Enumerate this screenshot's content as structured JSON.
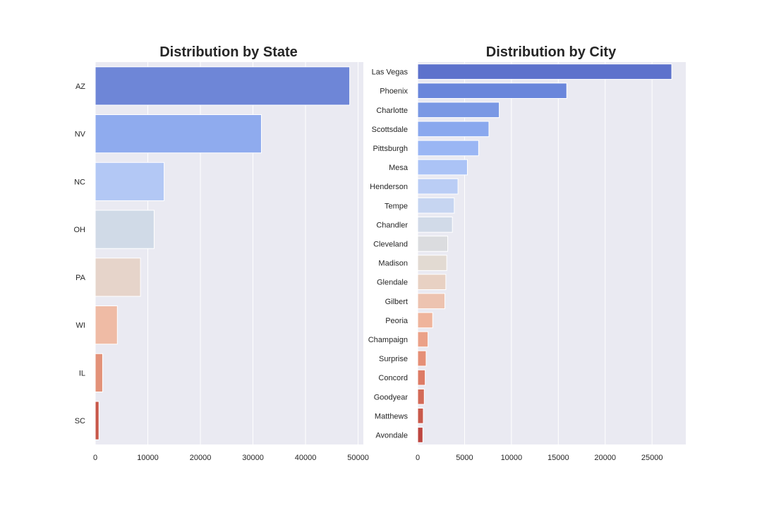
{
  "chart_data": [
    {
      "type": "bar",
      "orientation": "horizontal",
      "title": "Distribution by State",
      "xlabel": "",
      "ylabel": "",
      "xlim": [
        0,
        51000
      ],
      "xticks": [
        0,
        10000,
        20000,
        30000,
        40000,
        50000
      ],
      "grid": true,
      "categories": [
        "AZ",
        "NV",
        "NC",
        "OH",
        "PA",
        "WI",
        "IL",
        "SC"
      ],
      "values": [
        48400,
        31600,
        13100,
        11200,
        8600,
        4200,
        1400,
        700
      ],
      "colors": [
        "#6e86d7",
        "#8fabee",
        "#b3c8f5",
        "#d0dae7",
        "#e6d4ca",
        "#efbba5",
        "#e39279",
        "#c75749"
      ]
    },
    {
      "type": "bar",
      "orientation": "horizontal",
      "title": "Distribution by City",
      "xlabel": "",
      "ylabel": "",
      "xlim": [
        0,
        28600
      ],
      "xticks": [
        0,
        5000,
        10000,
        15000,
        20000,
        25000
      ],
      "grid": true,
      "categories": [
        "Las Vegas",
        "Phoenix",
        "Charlotte",
        "Scottsdale",
        "Pittsburgh",
        "Mesa",
        "Henderson",
        "Tempe",
        "Chandler",
        "Cleveland",
        "Madison",
        "Glendale",
        "Gilbert",
        "Peoria",
        "Champaign",
        "Surprise",
        "Concord",
        "Goodyear",
        "Matthews",
        "Avondale"
      ],
      "values": [
        27100,
        15900,
        8700,
        7600,
        6500,
        5300,
        4300,
        3900,
        3700,
        3200,
        3100,
        3000,
        2900,
        1600,
        1100,
        900,
        800,
        700,
        600,
        550
      ],
      "colors": [
        "#5d72cc",
        "#6a86db",
        "#7a98e4",
        "#8aa8ee",
        "#9ab6f4",
        "#abc3f6",
        "#bacdf5",
        "#c6d5f1",
        "#d1dae8",
        "#dbdcdf",
        "#e2dad2",
        "#e8d1c3",
        "#edc3b0",
        "#efb49c",
        "#eba188",
        "#e58f76",
        "#dd7b65",
        "#d36a57",
        "#c9594b",
        "#bd4640"
      ]
    }
  ]
}
